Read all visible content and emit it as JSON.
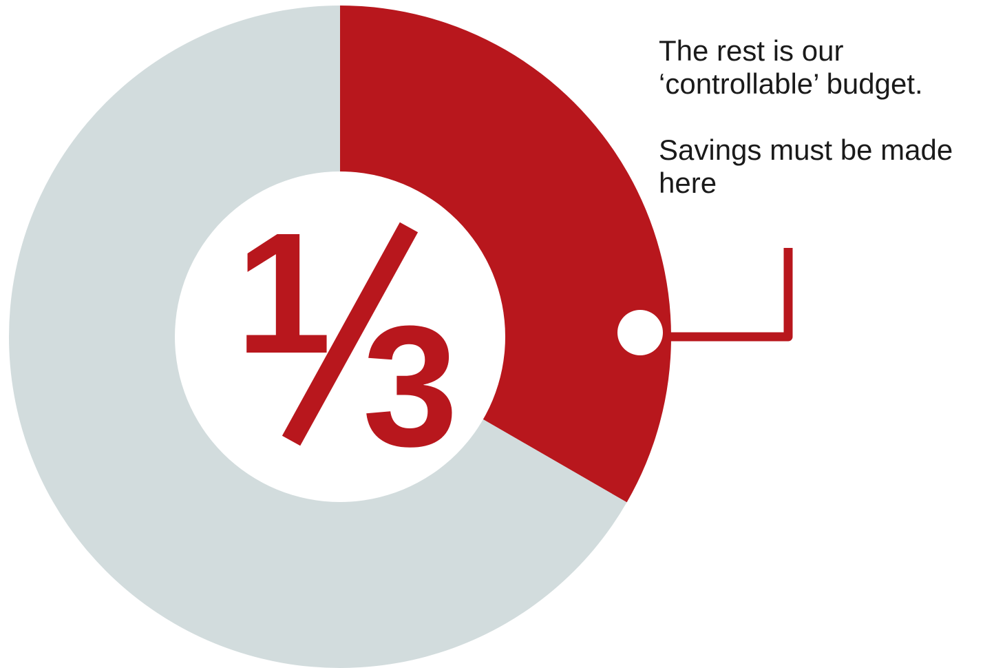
{
  "chart_data": {
    "type": "pie",
    "style": "donut",
    "slices": [
      {
        "value": 0.3333,
        "color": "#b8171d"
      },
      {
        "value": 0.6667,
        "color": "#d2dcdd"
      }
    ],
    "center_label": {
      "numerator": "1",
      "denominator": "3",
      "color": "#b8171d"
    },
    "annotation": {
      "line1": "The rest is our",
      "line2": "‘controllable’ budget.",
      "line3": "Savings must be made",
      "line4": "here",
      "leader_color": "#b8171d"
    }
  }
}
